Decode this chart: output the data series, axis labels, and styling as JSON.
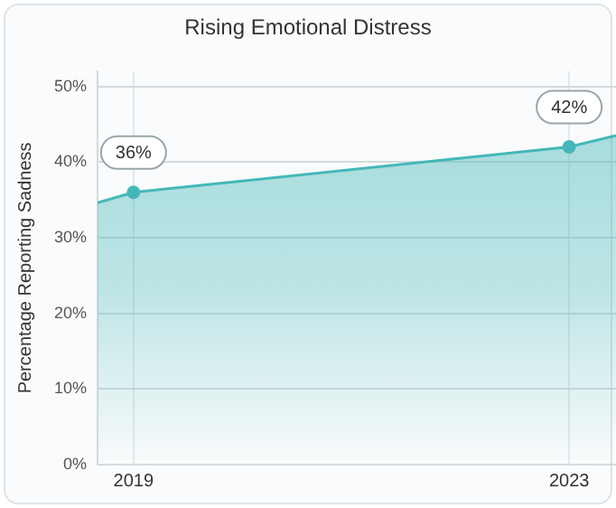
{
  "chart_data": {
    "type": "area",
    "title": "Rising Emotional Distress",
    "ylabel": "Percentage Reporting Sadness",
    "x": [
      2018.67,
      2019,
      2023,
      2023.43
    ],
    "series": [
      {
        "color": "#45b7b8",
        "values": [
          34.6,
          36,
          42,
          43.5
        ],
        "value_labels": [
          null,
          "36%",
          "42%",
          null
        ]
      }
    ],
    "xlim": [
      2018.67,
      2023.43
    ],
    "xticks": [
      2019,
      2023
    ],
    "ylim": [
      0,
      52
    ],
    "yticks": [
      {
        "value": 0,
        "label": "0%"
      },
      {
        "value": 10,
        "label": "10%"
      },
      {
        "value": 20,
        "label": "20%"
      },
      {
        "value": 30,
        "label": "30%"
      },
      {
        "value": 40,
        "label": "40%"
      },
      {
        "value": 50,
        "label": "50%"
      }
    ],
    "grid": true,
    "marker": "circle",
    "line_style": "solid",
    "legend": false
  }
}
